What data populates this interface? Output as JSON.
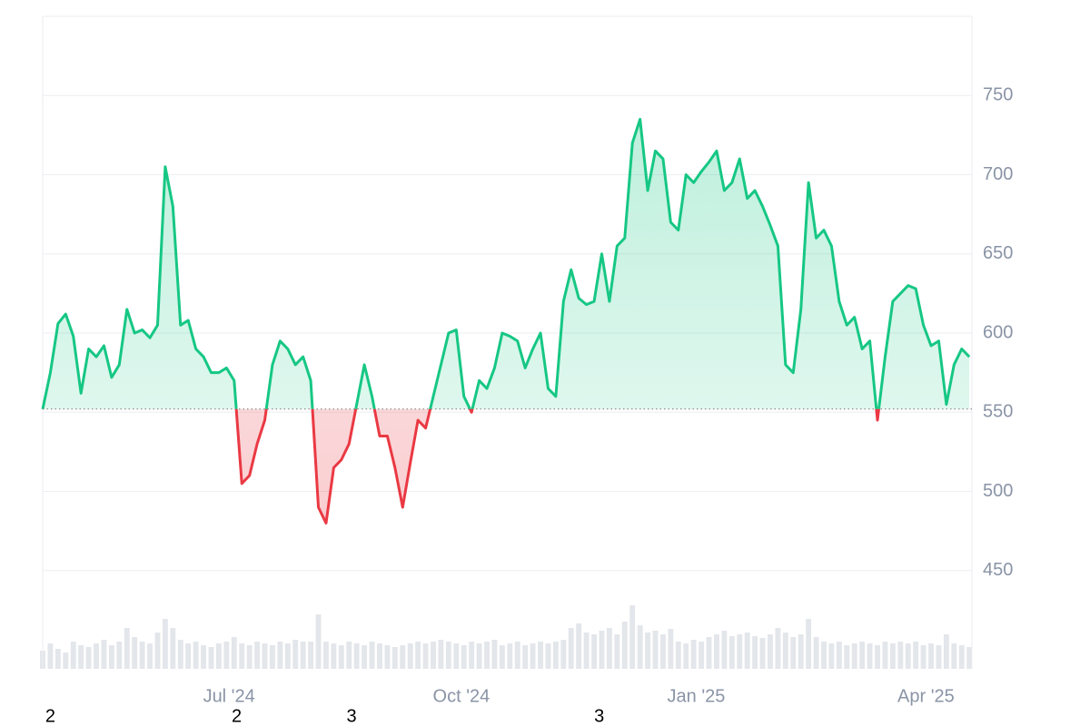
{
  "chart_data": {
    "type": "baseline-area",
    "baseline": 552,
    "xlim": [
      0,
      364
    ],
    "ylim": [
      388,
      800
    ],
    "yticks": [
      450,
      500,
      550,
      600,
      650,
      700,
      750
    ],
    "xticks": [
      {
        "value": 73,
        "label": "Jul '24"
      },
      {
        "value": 164,
        "label": "Oct '24"
      },
      {
        "value": 256,
        "label": "Jan '25"
      },
      {
        "value": 346,
        "label": "Apr '25"
      }
    ],
    "grid": true,
    "colors": {
      "up": "#16c784",
      "down": "#ea3943",
      "volume": "#e3e6ea"
    },
    "x": [
      0,
      3,
      6,
      9,
      12,
      15,
      18,
      21,
      24,
      27,
      30,
      33,
      36,
      39,
      42,
      45,
      48,
      51,
      54,
      57,
      60,
      63,
      66,
      69,
      72,
      75,
      78,
      81,
      84,
      87,
      90,
      93,
      96,
      99,
      102,
      105,
      108,
      111,
      114,
      117,
      120,
      123,
      126,
      129,
      132,
      135,
      138,
      141,
      144,
      147,
      150,
      153,
      156,
      159,
      162,
      165,
      168,
      171,
      174,
      177,
      180,
      183,
      186,
      189,
      192,
      195,
      198,
      201,
      204,
      207,
      210,
      213,
      216,
      219,
      222,
      225,
      228,
      231,
      234,
      237,
      240,
      243,
      246,
      249,
      252,
      255,
      258,
      261,
      264,
      267,
      270,
      273,
      276,
      279,
      282,
      285,
      288,
      291,
      294,
      297,
      300,
      303,
      306,
      309,
      312,
      315,
      318,
      321,
      324,
      327,
      330,
      333,
      336,
      339,
      342,
      345,
      348,
      351,
      354,
      357,
      360,
      363
    ],
    "series": [
      {
        "name": "Price",
        "values": [
          552,
          575,
          606,
          612,
          598,
          562,
          590,
          585,
          592,
          572,
          580,
          615,
          600,
          602,
          597,
          605,
          705,
          680,
          605,
          608,
          590,
          585,
          575,
          575,
          578,
          570,
          505,
          510,
          530,
          545,
          580,
          595,
          590,
          580,
          585,
          570,
          490,
          480,
          515,
          520,
          530,
          555,
          580,
          560,
          535,
          535,
          515,
          490,
          518,
          545,
          540,
          560,
          580,
          600,
          602,
          560,
          550,
          570,
          565,
          578,
          600,
          598,
          595,
          578,
          590,
          600,
          565,
          560,
          620,
          640,
          622,
          618,
          620,
          650,
          620,
          655,
          660,
          720,
          735,
          690,
          715,
          710,
          670,
          665,
          700,
          695,
          702,
          708,
          715,
          690,
          695,
          710,
          685,
          690,
          680,
          668,
          655,
          580,
          575,
          615,
          695,
          660,
          665,
          655,
          620,
          605,
          610,
          590,
          595,
          545,
          585,
          620,
          625,
          630,
          628,
          605,
          592,
          595,
          555,
          580,
          590,
          585
        ]
      },
      {
        "name": "Volume",
        "axis": "volume",
        "values": [
          20,
          28,
          22,
          18,
          30,
          26,
          24,
          28,
          32,
          26,
          30,
          45,
          35,
          30,
          28,
          40,
          55,
          45,
          32,
          28,
          30,
          26,
          24,
          28,
          30,
          35,
          28,
          26,
          30,
          28,
          26,
          30,
          28,
          32,
          30,
          30,
          60,
          30,
          28,
          26,
          30,
          28,
          26,
          30,
          28,
          26,
          24,
          26,
          28,
          30,
          28,
          30,
          32,
          30,
          28,
          26,
          30,
          28,
          30,
          32,
          26,
          28,
          30,
          26,
          28,
          30,
          28,
          30,
          32,
          45,
          50,
          40,
          38,
          42,
          45,
          38,
          52,
          70,
          48,
          40,
          42,
          38,
          44,
          30,
          28,
          32,
          30,
          35,
          38,
          42,
          36,
          38,
          40,
          36,
          34,
          38,
          45,
          40,
          35,
          38,
          55,
          35,
          30,
          28,
          30,
          26,
          28,
          30,
          28,
          26,
          30,
          28,
          30,
          28,
          30,
          26,
          28,
          26,
          38,
          28,
          26,
          24
        ]
      }
    ],
    "volume_ylim": [
      0,
      100
    ],
    "markers": [
      {
        "x": 3,
        "label": "2"
      },
      {
        "x": 76,
        "label": "2"
      },
      {
        "x": 121,
        "label": "3"
      },
      {
        "x": 218,
        "label": "3"
      }
    ]
  }
}
